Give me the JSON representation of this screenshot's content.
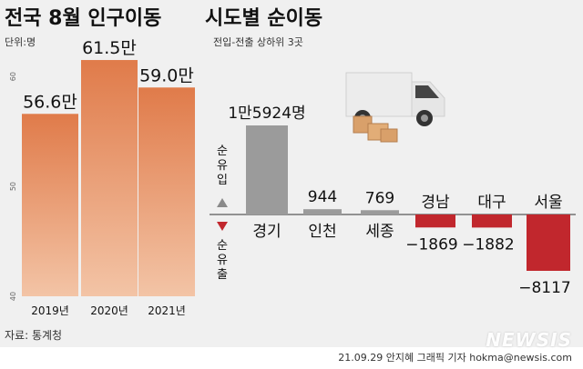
{
  "header_left": {
    "title": "전국 8월 인구이동",
    "unit": "단위:명"
  },
  "header_right": {
    "title": "시도별 순이동",
    "subtitle": "전입-전출 상하위 3곳"
  },
  "source": "자료: 통계청",
  "credit": "21.09.29 안지혜 그래픽 기자 hokma@newsis.com",
  "logo": "NEWSIS",
  "legend": {
    "up": "순유입",
    "down": "순유출"
  },
  "colors": {
    "bar_top": "#e07b4a",
    "bar_bottom": "#f3c4a6",
    "pos": "#9b9b9b",
    "neg": "#c1272d",
    "axis": "#333333"
  },
  "chart_data": [
    {
      "type": "bar",
      "title": "전국 8월 인구이동",
      "categories": [
        "2019년",
        "2020년",
        "2021년"
      ],
      "values": [
        56.6,
        61.5,
        59.0
      ],
      "value_labels": [
        "56.6만",
        "61.5만",
        "59.0만"
      ],
      "ylim": [
        40,
        62
      ],
      "y_ticks": [
        40,
        50,
        60
      ],
      "unit": "단위:명"
    },
    {
      "type": "bar",
      "title": "시도별 순이동",
      "subtitle": "전입-전출 상하위 3곳",
      "categories": [
        "경기",
        "인천",
        "세종",
        "경남",
        "대구",
        "서울"
      ],
      "values": [
        15924,
        944,
        769,
        -1869,
        -1882,
        -8117
      ],
      "value_labels": [
        "1만5924명",
        "944",
        "769",
        "−1869",
        "−1882",
        "−8117"
      ]
    }
  ]
}
